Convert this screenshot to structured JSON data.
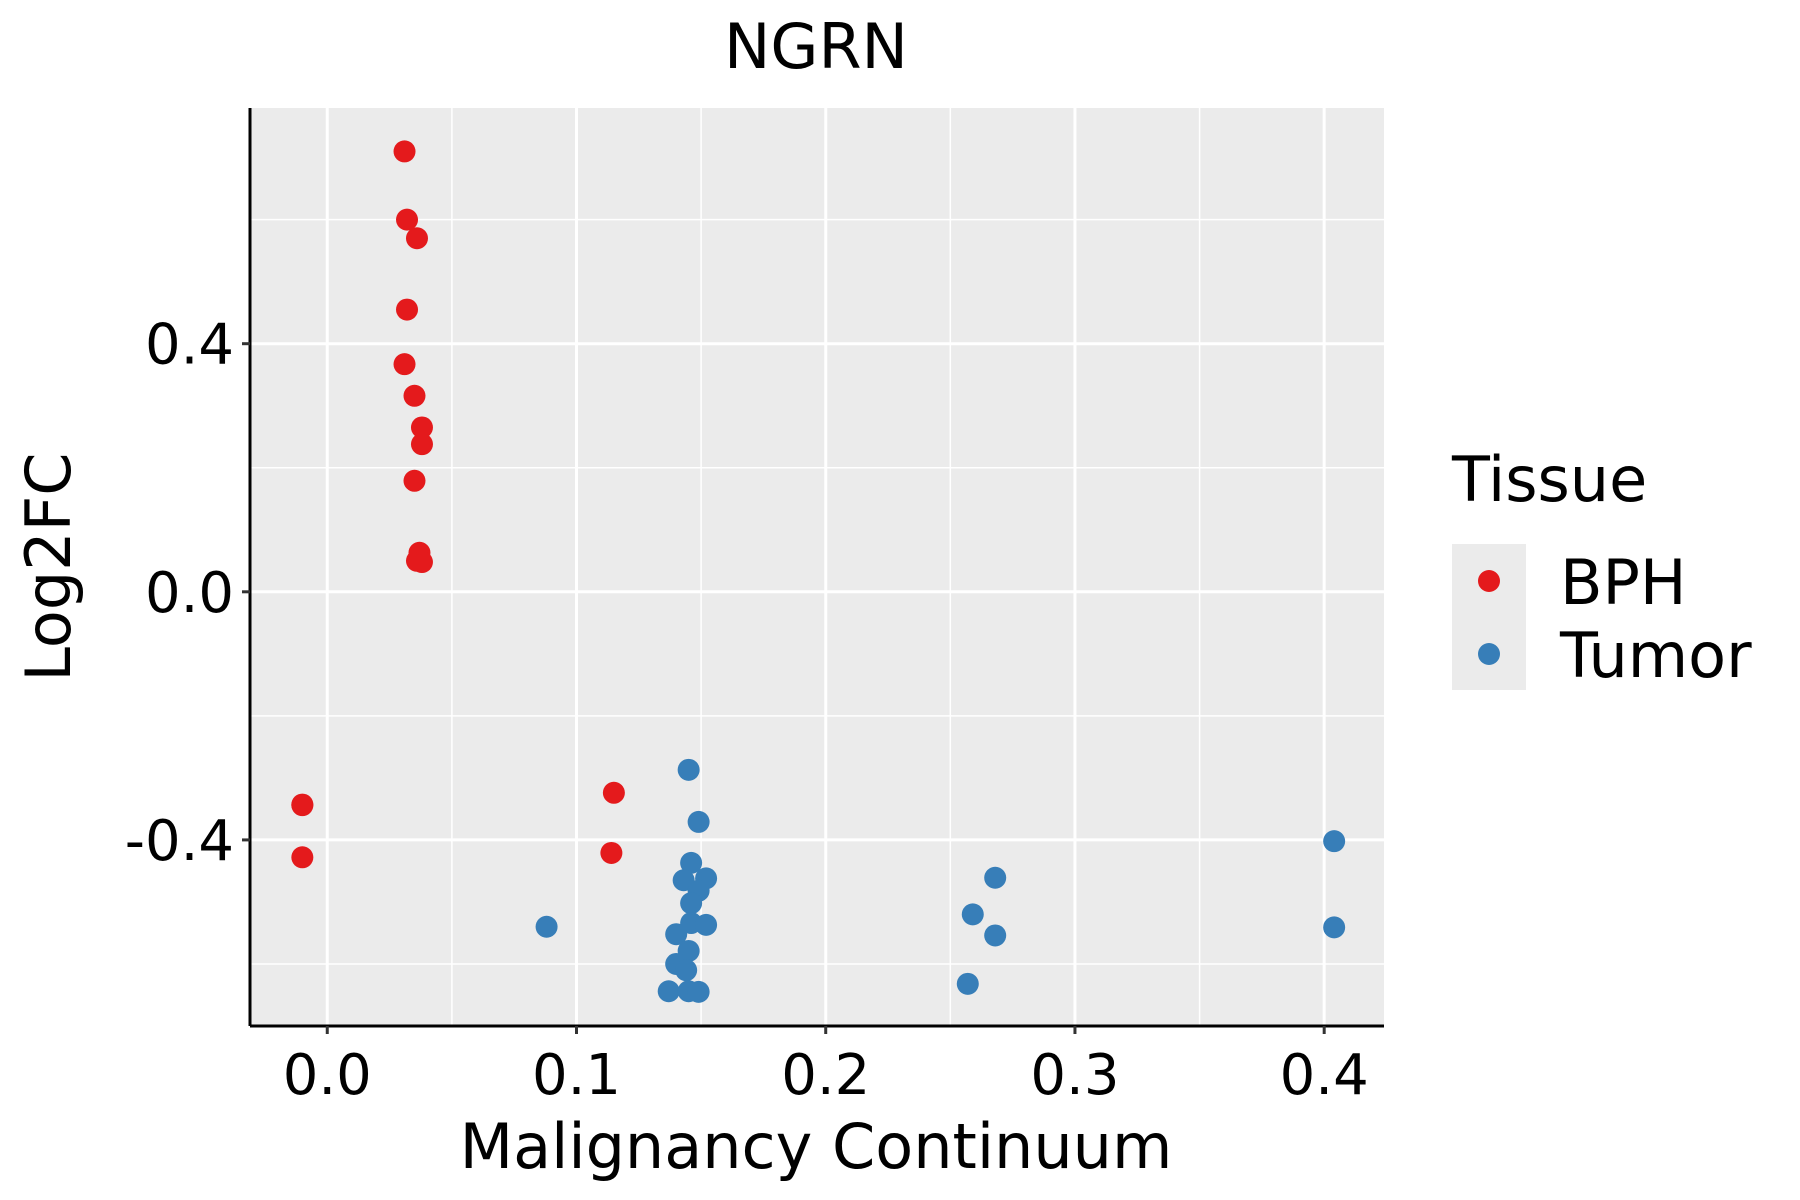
{
  "chart_data": {
    "type": "scatter",
    "title": "NGRN",
    "xlabel": "Malignancy Continuum",
    "ylabel": "Log2FC",
    "xlim": [
      -0.031,
      0.424
    ],
    "ylim": [
      -0.7,
      0.78
    ],
    "xticks": [
      0.0,
      0.1,
      0.2,
      0.3,
      0.4
    ],
    "xtick_labels": [
      "0.0",
      "0.1",
      "0.2",
      "0.3",
      "0.4"
    ],
    "yticks": [
      -0.4,
      0.0,
      0.4
    ],
    "ytick_labels": [
      "-0.4",
      "0.0",
      "0.4"
    ],
    "grid": true,
    "legend": {
      "title": "Tissue",
      "position": "right"
    },
    "series": [
      {
        "name": "BPH",
        "color": "#E41A1C",
        "points": [
          {
            "x": 0.031,
            "y": 0.71
          },
          {
            "x": 0.032,
            "y": 0.6
          },
          {
            "x": 0.036,
            "y": 0.57
          },
          {
            "x": 0.032,
            "y": 0.455
          },
          {
            "x": 0.031,
            "y": 0.367
          },
          {
            "x": 0.035,
            "y": 0.316
          },
          {
            "x": 0.038,
            "y": 0.265
          },
          {
            "x": 0.038,
            "y": 0.238
          },
          {
            "x": 0.035,
            "y": 0.179
          },
          {
            "x": 0.037,
            "y": 0.063
          },
          {
            "x": 0.036,
            "y": 0.05
          },
          {
            "x": 0.038,
            "y": 0.048
          },
          {
            "x": -0.01,
            "y": -0.343
          },
          {
            "x": -0.01,
            "y": -0.344
          },
          {
            "x": -0.01,
            "y": -0.428
          },
          {
            "x": 0.115,
            "y": -0.324
          },
          {
            "x": 0.114,
            "y": -0.421
          }
        ]
      },
      {
        "name": "Tumor",
        "color": "#377EB8",
        "points": [
          {
            "x": 0.145,
            "y": -0.287
          },
          {
            "x": 0.149,
            "y": -0.371
          },
          {
            "x": 0.146,
            "y": -0.437
          },
          {
            "x": 0.152,
            "y": -0.462
          },
          {
            "x": 0.143,
            "y": -0.465
          },
          {
            "x": 0.149,
            "y": -0.482
          },
          {
            "x": 0.146,
            "y": -0.502
          },
          {
            "x": 0.146,
            "y": -0.534
          },
          {
            "x": 0.152,
            "y": -0.537
          },
          {
            "x": 0.14,
            "y": -0.552
          },
          {
            "x": 0.145,
            "y": -0.579
          },
          {
            "x": 0.14,
            "y": -0.6
          },
          {
            "x": 0.144,
            "y": -0.61
          },
          {
            "x": 0.137,
            "y": -0.644
          },
          {
            "x": 0.145,
            "y": -0.644
          },
          {
            "x": 0.149,
            "y": -0.645
          },
          {
            "x": 0.088,
            "y": -0.54
          },
          {
            "x": 0.268,
            "y": -0.461
          },
          {
            "x": 0.259,
            "y": -0.52
          },
          {
            "x": 0.268,
            "y": -0.554
          },
          {
            "x": 0.257,
            "y": -0.632
          },
          {
            "x": 0.404,
            "y": -0.402
          },
          {
            "x": 0.404,
            "y": -0.541
          }
        ]
      }
    ]
  }
}
